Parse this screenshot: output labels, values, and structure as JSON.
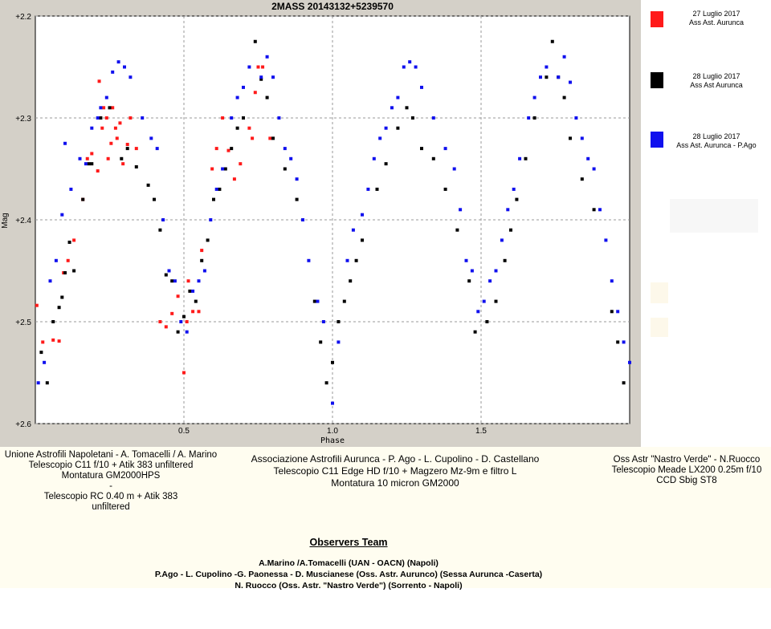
{
  "chart_data": {
    "type": "scatter",
    "title": "2MASS 20143132+5239570",
    "xlabel": "Phase",
    "ylabel": "Mag",
    "xlim": [
      0.0,
      2.0
    ],
    "ylim": [
      2.6,
      2.2
    ],
    "y_inverted": true,
    "x_ticks": [
      "0.5",
      "1.0",
      "1.5"
    ],
    "y_ticks": [
      "+2.2",
      "+2.3",
      "+2.4",
      "+2.5",
      "+2.6"
    ],
    "grid": true,
    "legend_position": "right",
    "series": [
      {
        "name": "27 Luglio 2017 Ass Ast. Aurunca",
        "color": "#ff1a1a",
        "points": [
          [
            0.005,
            2.484
          ],
          [
            0.025,
            2.52
          ],
          [
            0.06,
            2.518
          ],
          [
            0.08,
            2.519
          ],
          [
            0.095,
            2.452
          ],
          [
            0.11,
            2.44
          ],
          [
            0.13,
            2.42
          ],
          [
            0.16,
            2.38
          ],
          [
            0.175,
            2.34
          ],
          [
            0.19,
            2.335
          ],
          [
            0.21,
            2.352
          ],
          [
            0.215,
            2.264
          ],
          [
            0.225,
            2.31
          ],
          [
            0.23,
            2.29
          ],
          [
            0.24,
            2.3
          ],
          [
            0.245,
            2.34
          ],
          [
            0.255,
            2.325
          ],
          [
            0.26,
            2.29
          ],
          [
            0.27,
            2.31
          ],
          [
            0.275,
            2.32
          ],
          [
            0.285,
            2.305
          ],
          [
            0.295,
            2.345
          ],
          [
            0.31,
            2.326
          ],
          [
            0.32,
            2.3
          ],
          [
            0.34,
            2.33
          ],
          [
            0.42,
            2.5
          ],
          [
            0.44,
            2.505
          ],
          [
            0.46,
            2.492
          ],
          [
            0.48,
            2.475
          ],
          [
            0.5,
            2.55
          ],
          [
            0.51,
            2.5
          ],
          [
            0.515,
            2.46
          ],
          [
            0.53,
            2.49
          ],
          [
            0.55,
            2.49
          ],
          [
            0.56,
            2.43
          ],
          [
            0.595,
            2.35
          ],
          [
            0.61,
            2.33
          ],
          [
            0.63,
            2.3
          ],
          [
            0.65,
            2.332
          ],
          [
            0.67,
            2.36
          ],
          [
            0.69,
            2.345
          ],
          [
            0.72,
            2.31
          ],
          [
            0.73,
            2.32
          ],
          [
            0.74,
            2.275
          ],
          [
            0.75,
            2.25
          ],
          [
            0.765,
            2.25
          ],
          [
            0.79,
            2.32
          ]
        ]
      },
      {
        "name": "28 Luglio 2017 Ass Ast Aurunca",
        "color": "#000000",
        "points": [
          [
            0.02,
            2.53
          ],
          [
            0.04,
            2.56
          ],
          [
            0.06,
            2.5
          ],
          [
            0.08,
            2.486
          ],
          [
            0.09,
            2.476
          ],
          [
            0.1,
            2.452
          ],
          [
            0.115,
            2.422
          ],
          [
            0.13,
            2.45
          ],
          [
            0.16,
            2.38
          ],
          [
            0.18,
            2.345
          ],
          [
            0.19,
            2.345
          ],
          [
            0.22,
            2.3
          ],
          [
            0.25,
            2.29
          ],
          [
            0.29,
            2.34
          ],
          [
            0.31,
            2.33
          ],
          [
            0.34,
            2.348
          ],
          [
            0.38,
            2.366
          ],
          [
            0.4,
            2.38
          ],
          [
            0.42,
            2.41
          ],
          [
            0.44,
            2.454
          ],
          [
            0.46,
            2.46
          ],
          [
            0.48,
            2.51
          ],
          [
            0.5,
            2.495
          ],
          [
            0.52,
            2.47
          ],
          [
            0.54,
            2.48
          ],
          [
            0.56,
            2.44
          ],
          [
            0.58,
            2.42
          ],
          [
            0.6,
            2.38
          ],
          [
            0.62,
            2.37
          ],
          [
            0.64,
            2.35
          ],
          [
            0.66,
            2.33
          ],
          [
            0.68,
            2.31
          ],
          [
            0.7,
            2.3
          ],
          [
            0.74,
            2.225
          ],
          [
            0.76,
            2.262
          ],
          [
            0.78,
            2.28
          ],
          [
            0.8,
            2.32
          ],
          [
            0.84,
            2.35
          ],
          [
            0.88,
            2.38
          ],
          [
            0.94,
            2.48
          ],
          [
            0.96,
            2.52
          ],
          [
            0.98,
            2.56
          ],
          [
            1.0,
            2.54
          ],
          [
            1.02,
            2.5
          ],
          [
            1.04,
            2.48
          ],
          [
            1.06,
            2.46
          ],
          [
            1.08,
            2.44
          ],
          [
            1.1,
            2.42
          ],
          [
            1.15,
            2.37
          ],
          [
            1.18,
            2.345
          ],
          [
            1.22,
            2.31
          ],
          [
            1.25,
            2.29
          ],
          [
            1.27,
            2.3
          ],
          [
            1.3,
            2.33
          ],
          [
            1.34,
            2.34
          ],
          [
            1.38,
            2.37
          ],
          [
            1.42,
            2.41
          ],
          [
            1.46,
            2.46
          ],
          [
            1.48,
            2.51
          ],
          [
            1.52,
            2.5
          ],
          [
            1.55,
            2.48
          ],
          [
            1.58,
            2.44
          ],
          [
            1.6,
            2.41
          ],
          [
            1.62,
            2.38
          ],
          [
            1.65,
            2.34
          ],
          [
            1.68,
            2.3
          ],
          [
            1.72,
            2.26
          ],
          [
            1.74,
            2.225
          ],
          [
            1.76,
            2.26
          ],
          [
            1.78,
            2.28
          ],
          [
            1.8,
            2.32
          ],
          [
            1.84,
            2.36
          ],
          [
            1.88,
            2.39
          ],
          [
            1.94,
            2.49
          ],
          [
            1.96,
            2.52
          ],
          [
            1.98,
            2.56
          ]
        ]
      },
      {
        "name": "28 Luglio 2017 Ass Ast. Aurunca - P.Ago",
        "color": "#1010ee",
        "points": [
          [
            0.01,
            2.56
          ],
          [
            0.03,
            2.54
          ],
          [
            0.05,
            2.46
          ],
          [
            0.07,
            2.44
          ],
          [
            0.09,
            2.395
          ],
          [
            0.1,
            2.325
          ],
          [
            0.12,
            2.37
          ],
          [
            0.15,
            2.34
          ],
          [
            0.17,
            2.345
          ],
          [
            0.19,
            2.31
          ],
          [
            0.21,
            2.3
          ],
          [
            0.22,
            2.29
          ],
          [
            0.24,
            2.28
          ],
          [
            0.26,
            2.255
          ],
          [
            0.28,
            2.245
          ],
          [
            0.3,
            2.25
          ],
          [
            0.32,
            2.26
          ],
          [
            0.36,
            2.3
          ],
          [
            0.39,
            2.32
          ],
          [
            0.41,
            2.33
          ],
          [
            0.43,
            2.4
          ],
          [
            0.45,
            2.45
          ],
          [
            0.47,
            2.46
          ],
          [
            0.49,
            2.5
          ],
          [
            0.51,
            2.51
          ],
          [
            0.53,
            2.47
          ],
          [
            0.55,
            2.46
          ],
          [
            0.57,
            2.45
          ],
          [
            0.59,
            2.4
          ],
          [
            0.61,
            2.37
          ],
          [
            0.63,
            2.35
          ],
          [
            0.66,
            2.3
          ],
          [
            0.68,
            2.28
          ],
          [
            0.7,
            2.27
          ],
          [
            0.72,
            2.25
          ],
          [
            0.76,
            2.26
          ],
          [
            0.78,
            2.24
          ],
          [
            0.8,
            2.26
          ],
          [
            0.82,
            2.3
          ],
          [
            0.84,
            2.33
          ],
          [
            0.86,
            2.34
          ],
          [
            0.88,
            2.36
          ],
          [
            0.9,
            2.4
          ],
          [
            0.92,
            2.44
          ],
          [
            0.95,
            2.48
          ],
          [
            0.97,
            2.5
          ],
          [
            1.0,
            2.58
          ],
          [
            1.02,
            2.52
          ],
          [
            1.05,
            2.44
          ],
          [
            1.07,
            2.41
          ],
          [
            1.1,
            2.395
          ],
          [
            1.12,
            2.37
          ],
          [
            1.14,
            2.34
          ],
          [
            1.16,
            2.32
          ],
          [
            1.18,
            2.31
          ],
          [
            1.2,
            2.29
          ],
          [
            1.22,
            2.28
          ],
          [
            1.24,
            2.25
          ],
          [
            1.26,
            2.245
          ],
          [
            1.28,
            2.25
          ],
          [
            1.3,
            2.27
          ],
          [
            1.34,
            2.3
          ],
          [
            1.38,
            2.33
          ],
          [
            1.41,
            2.35
          ],
          [
            1.43,
            2.39
          ],
          [
            1.45,
            2.44
          ],
          [
            1.47,
            2.45
          ],
          [
            1.49,
            2.49
          ],
          [
            1.51,
            2.48
          ],
          [
            1.53,
            2.46
          ],
          [
            1.55,
            2.45
          ],
          [
            1.57,
            2.42
          ],
          [
            1.59,
            2.39
          ],
          [
            1.61,
            2.37
          ],
          [
            1.63,
            2.34
          ],
          [
            1.66,
            2.3
          ],
          [
            1.68,
            2.28
          ],
          [
            1.7,
            2.26
          ],
          [
            1.72,
            2.25
          ],
          [
            1.76,
            2.26
          ],
          [
            1.78,
            2.24
          ],
          [
            1.8,
            2.265
          ],
          [
            1.82,
            2.3
          ],
          [
            1.84,
            2.32
          ],
          [
            1.86,
            2.34
          ],
          [
            1.88,
            2.35
          ],
          [
            1.9,
            2.39
          ],
          [
            1.92,
            2.42
          ],
          [
            1.94,
            2.46
          ],
          [
            1.96,
            2.49
          ],
          [
            1.98,
            2.52
          ],
          [
            2.0,
            2.54
          ]
        ]
      }
    ]
  },
  "legend": [
    {
      "line1": "27 Luglio 2017",
      "line2": "Ass Ast. Aurunca",
      "color": "#ff1a1a"
    },
    {
      "line1": "28 Luglio 2017",
      "line2": "Ass Ast Aurunca",
      "color": "#000000"
    },
    {
      "line1": "28 Luglio 2017",
      "line2": "Ass Ast. Aurunca - P.Ago",
      "color": "#1010ee"
    }
  ],
  "footer": {
    "left": {
      "line1": "Unione Astrofili Napoletani - A. Tomacelli / A. Marino",
      "line2": "Telescopio C11 f/10 + Atik 383 unfiltered",
      "line3": "Montatura GM2000HPS",
      "line4": "-",
      "line5": "Telescopio RC 0.40 m + Atik 383",
      "line6": "unfiltered"
    },
    "center": {
      "line1": "Associazione Astrofili Aurunca - P. Ago - L. Cupolino  - D. Castellano",
      "line2": "Telescopio C11 Edge HD f/10 + Magzero Mz-9m e filtro L",
      "line3": "Montatura 10 micron GM2000"
    },
    "right": {
      "line1": "Oss Astr \"Nastro Verde\" - N.Ruocco",
      "line2": "Telescopio Meade LX200 0.25m f/10",
      "line3": "CCD Sbig ST8"
    },
    "team_title": "Observers Team",
    "team": {
      "line1": "A.Marino /A.Tomacelli (UAN - OACN) (Napoli)",
      "line2": "P.Ago - L. Cupolino -G. Paonessa - D. Muscianese (Oss. Astr. Aurunco) (Sessa Aurunca -Caserta)",
      "line3": "N. Ruocco (Oss. Astr. \"Nastro Verde\") (Sorrento - Napoli)"
    }
  }
}
